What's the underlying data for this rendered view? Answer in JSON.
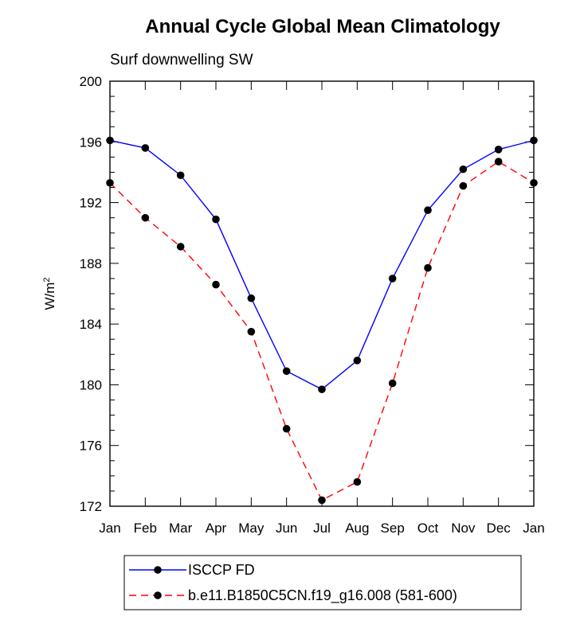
{
  "chart_data": {
    "type": "line",
    "title": "Annual Cycle Global Mean Climatology",
    "subtitle": "Surf downwelling SW",
    "ylabel_base": "W/m",
    "ylabel_exp": "2",
    "xlabel": "",
    "categories": [
      "Jan",
      "Feb",
      "Mar",
      "Apr",
      "May",
      "Jun",
      "Jul",
      "Aug",
      "Sep",
      "Oct",
      "Nov",
      "Dec",
      "Jan"
    ],
    "ylim": [
      172,
      200
    ],
    "yticks": [
      172,
      176,
      180,
      184,
      188,
      192,
      196,
      200
    ],
    "series": [
      {
        "name": "ISCCP FD",
        "color": "#0000ff",
        "line_style": "solid",
        "values": [
          196.1,
          195.6,
          193.8,
          190.9,
          185.7,
          180.9,
          179.7,
          181.6,
          187.0,
          191.5,
          194.2,
          195.5,
          196.1
        ]
      },
      {
        "name": "b.e11.B1850C5CN.f19_g16.008 (581-600)",
        "color": "#ff0000",
        "line_style": "dashed",
        "values": [
          193.3,
          191.0,
          189.1,
          186.6,
          183.5,
          177.1,
          172.4,
          173.6,
          180.1,
          187.7,
          193.1,
          194.7,
          193.3
        ]
      }
    ],
    "grid": false,
    "legend_position": "bottom"
  }
}
